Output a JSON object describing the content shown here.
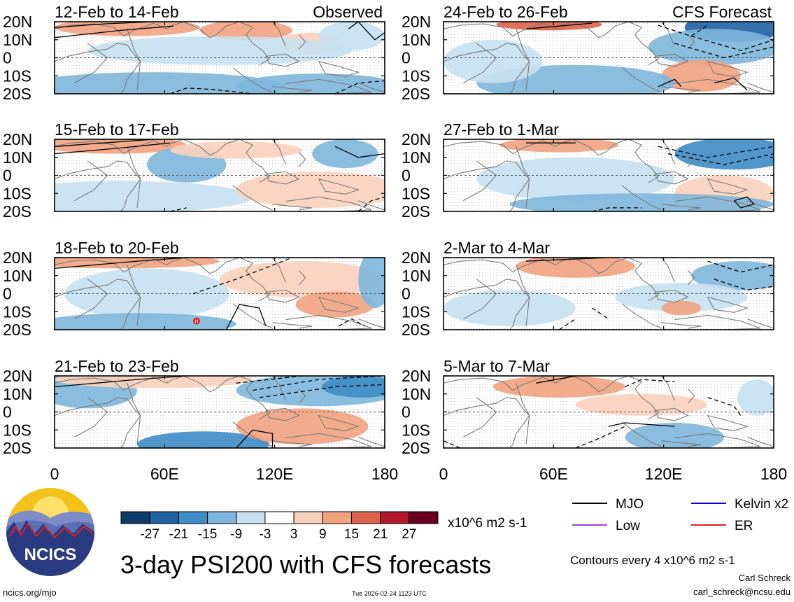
{
  "chart_data": {
    "type": "heatmap",
    "title": "3-day PSI200 with CFS forecasts",
    "variable": "PSI200 anomaly",
    "units": "x10^6 m2 s-1",
    "contour_note": "Contours every 4 x10^6 m2 s-1",
    "xlim": [
      0,
      180
    ],
    "ylim": [
      -20,
      20
    ],
    "x_ticks": [
      "0",
      "60E",
      "120E",
      "180"
    ],
    "y_ticks": [
      "20N",
      "10N",
      "0",
      "10S",
      "20S"
    ],
    "colorbar": {
      "labels": [
        "-27",
        "-21",
        "-15",
        "-9",
        "-3",
        "3",
        "9",
        "15",
        "21",
        "27"
      ],
      "colors": [
        "#0d3a66",
        "#1f62a3",
        "#3f8cc6",
        "#7eb6dc",
        "#c7e0f0",
        "#ffffff",
        "#f9d0bb",
        "#f1a27f",
        "#db6349",
        "#b2182b",
        "#67001f"
      ]
    },
    "panels": [
      {
        "label": "12-Feb to 14-Feb",
        "tag": "Observed",
        "kind": "observed"
      },
      {
        "label": "15-Feb to 17-Feb",
        "tag": "",
        "kind": "observed"
      },
      {
        "label": "18-Feb to 20-Feb",
        "tag": "",
        "kind": "observed"
      },
      {
        "label": "21-Feb to 23-Feb",
        "tag": "",
        "kind": "observed"
      },
      {
        "label": "24-Feb to 26-Feb",
        "tag": "CFS Forecast",
        "kind": "forecast"
      },
      {
        "label": "27-Feb to 1-Mar",
        "tag": "",
        "kind": "forecast"
      },
      {
        "label": "2-Mar to 4-Mar",
        "tag": "",
        "kind": "forecast"
      },
      {
        "label": "5-Mar to 7-Mar",
        "tag": "",
        "kind": "forecast"
      }
    ],
    "contour_legend": [
      {
        "name": "MJO",
        "color": "#000000"
      },
      {
        "name": "Kelvin x2",
        "color": "#0000ff"
      },
      {
        "name": "Low",
        "color": "#a040e0"
      },
      {
        "name": "ER",
        "color": "#e02020"
      }
    ]
  },
  "branding": {
    "logo_text": "NCICS",
    "site": "ncics.org/mjo",
    "timestamp": "Tue 2026-02-24 1123 UTC",
    "author": "Carl Schreck",
    "email": "carl_schreck@ncsu.edu"
  }
}
